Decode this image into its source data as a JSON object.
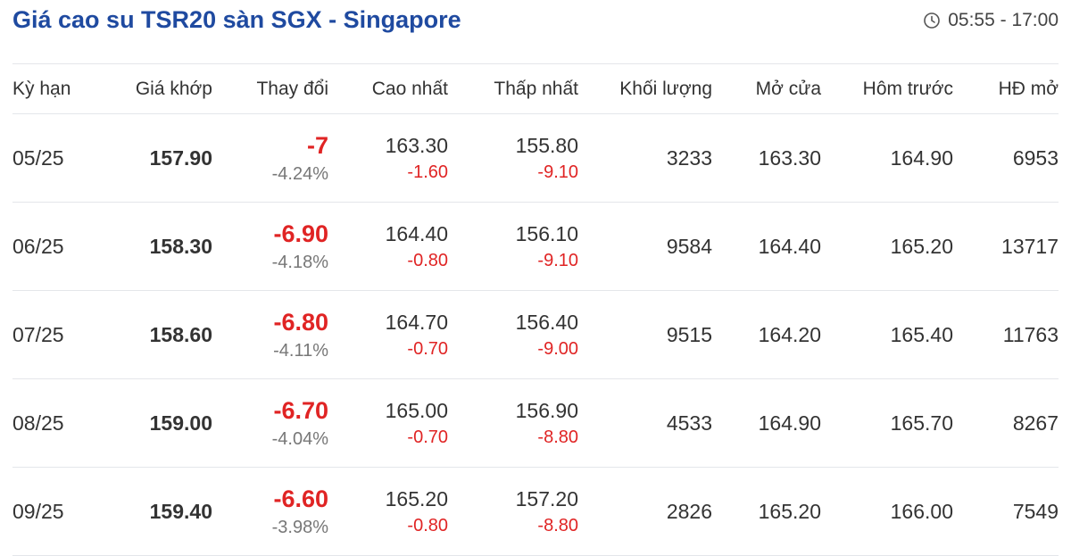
{
  "header": {
    "title": "Giá cao su TSR20 sàn SGX - Singapore",
    "trading_hours": "05:55 - 17:00",
    "clock_icon": "clock-icon"
  },
  "colors": {
    "title": "#1f4aa0",
    "negative": "#e02424",
    "muted": "#777777"
  },
  "table": {
    "columns": {
      "term": "Kỳ hạn",
      "price": "Giá khớp",
      "change": "Thay đổi",
      "high": "Cao nhất",
      "low": "Thấp nhất",
      "volume": "Khối lượng",
      "open": "Mở cửa",
      "prev": "Hôm trước",
      "oi": "HĐ mở"
    },
    "rows": [
      {
        "term": "05/25",
        "price": "157.90",
        "change": "-7",
        "change_pct": "-4.24%",
        "high": "163.30",
        "high_diff": "-1.60",
        "low": "155.80",
        "low_diff": "-9.10",
        "volume": "3233",
        "open": "163.30",
        "prev": "164.90",
        "oi": "6953"
      },
      {
        "term": "06/25",
        "price": "158.30",
        "change": "-6.90",
        "change_pct": "-4.18%",
        "high": "164.40",
        "high_diff": "-0.80",
        "low": "156.10",
        "low_diff": "-9.10",
        "volume": "9584",
        "open": "164.40",
        "prev": "165.20",
        "oi": "13717"
      },
      {
        "term": "07/25",
        "price": "158.60",
        "change": "-6.80",
        "change_pct": "-4.11%",
        "high": "164.70",
        "high_diff": "-0.70",
        "low": "156.40",
        "low_diff": "-9.00",
        "volume": "9515",
        "open": "164.20",
        "prev": "165.40",
        "oi": "11763"
      },
      {
        "term": "08/25",
        "price": "159.00",
        "change": "-6.70",
        "change_pct": "-4.04%",
        "high": "165.00",
        "high_diff": "-0.70",
        "low": "156.90",
        "low_diff": "-8.80",
        "volume": "4533",
        "open": "164.90",
        "prev": "165.70",
        "oi": "8267"
      },
      {
        "term": "09/25",
        "price": "159.40",
        "change": "-6.60",
        "change_pct": "-3.98%",
        "high": "165.20",
        "high_diff": "-0.80",
        "low": "157.20",
        "low_diff": "-8.80",
        "volume": "2826",
        "open": "165.20",
        "prev": "166.00",
        "oi": "7549"
      }
    ]
  }
}
